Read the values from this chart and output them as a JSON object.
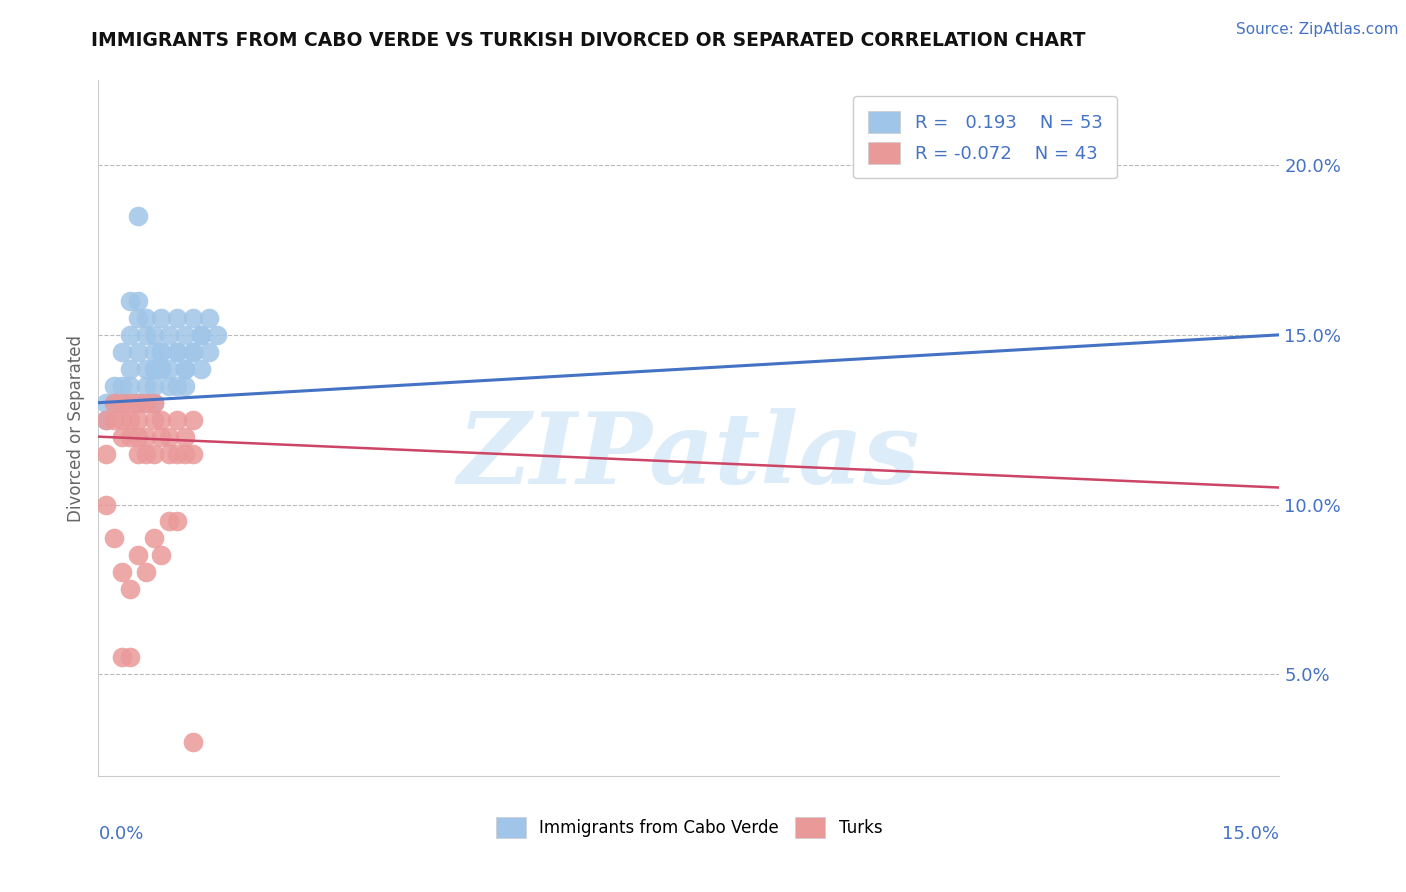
{
  "title": "IMMIGRANTS FROM CABO VERDE VS TURKISH DIVORCED OR SEPARATED CORRELATION CHART",
  "source_text": "Source: ZipAtlas.com",
  "ylabel": "Divorced or Separated",
  "x_label_bottom_left": "0.0%",
  "x_label_bottom_right": "15.0%",
  "right_ytick_labels": [
    "20.0%",
    "15.0%",
    "10.0%",
    "5.0%"
  ],
  "right_ytick_values": [
    0.2,
    0.15,
    0.1,
    0.05
  ],
  "xlim": [
    0.0,
    0.15
  ],
  "ylim": [
    0.02,
    0.225
  ],
  "legend_r1": "R =   0.193",
  "legend_n1": "N = 53",
  "legend_r2": "R = -0.072",
  "legend_n2": "N = 43",
  "blue_color": "#9fc5e8",
  "pink_color": "#ea9999",
  "blue_line_color": "#4472c4",
  "pink_line_color": "#cc4466",
  "background_color": "#ffffff",
  "watermark_color": "#d6e9f8",
  "watermark_text": "ZIPatlas",
  "blue_scatter_x": [
    0.001,
    0.002,
    0.003,
    0.004,
    0.004,
    0.005,
    0.005,
    0.005,
    0.006,
    0.006,
    0.007,
    0.007,
    0.007,
    0.008,
    0.008,
    0.009,
    0.009,
    0.01,
    0.01,
    0.01,
    0.011,
    0.011,
    0.011,
    0.012,
    0.012,
    0.013,
    0.013,
    0.014,
    0.014,
    0.015,
    0.003,
    0.004,
    0.005,
    0.005,
    0.006,
    0.006,
    0.007,
    0.007,
    0.008,
    0.008,
    0.001,
    0.002,
    0.003,
    0.004,
    0.005,
    0.006,
    0.007,
    0.008,
    0.009,
    0.01,
    0.011,
    0.012,
    0.013
  ],
  "blue_scatter_y": [
    0.13,
    0.135,
    0.145,
    0.14,
    0.15,
    0.13,
    0.145,
    0.155,
    0.135,
    0.15,
    0.14,
    0.15,
    0.135,
    0.145,
    0.155,
    0.14,
    0.15,
    0.135,
    0.145,
    0.155,
    0.14,
    0.15,
    0.135,
    0.145,
    0.155,
    0.14,
    0.15,
    0.145,
    0.155,
    0.15,
    0.13,
    0.16,
    0.185,
    0.16,
    0.155,
    0.13,
    0.14,
    0.13,
    0.145,
    0.14,
    0.125,
    0.13,
    0.135,
    0.135,
    0.13,
    0.14,
    0.145,
    0.14,
    0.135,
    0.145,
    0.14,
    0.145,
    0.15
  ],
  "pink_scatter_x": [
    0.001,
    0.001,
    0.002,
    0.002,
    0.003,
    0.003,
    0.003,
    0.004,
    0.004,
    0.004,
    0.005,
    0.005,
    0.005,
    0.005,
    0.006,
    0.006,
    0.006,
    0.007,
    0.007,
    0.007,
    0.008,
    0.008,
    0.009,
    0.009,
    0.01,
    0.01,
    0.011,
    0.011,
    0.012,
    0.012,
    0.001,
    0.002,
    0.003,
    0.004,
    0.005,
    0.006,
    0.007,
    0.008,
    0.009,
    0.01,
    0.003,
    0.004,
    0.012
  ],
  "pink_scatter_y": [
    0.125,
    0.115,
    0.13,
    0.125,
    0.13,
    0.125,
    0.12,
    0.13,
    0.125,
    0.12,
    0.13,
    0.125,
    0.115,
    0.12,
    0.13,
    0.115,
    0.12,
    0.13,
    0.125,
    0.115,
    0.125,
    0.12,
    0.12,
    0.115,
    0.125,
    0.115,
    0.12,
    0.115,
    0.125,
    0.115,
    0.1,
    0.09,
    0.08,
    0.075,
    0.085,
    0.08,
    0.09,
    0.085,
    0.095,
    0.095,
    0.055,
    0.055,
    0.03
  ],
  "blue_trend_x": [
    0.0,
    0.15
  ],
  "blue_trend_y": [
    0.13,
    0.15
  ],
  "pink_trend_x": [
    0.0,
    0.15
  ],
  "pink_trend_y": [
    0.12,
    0.105
  ]
}
